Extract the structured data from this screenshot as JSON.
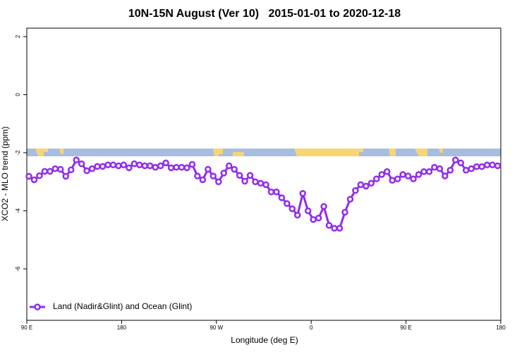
{
  "chart_data": {
    "type": "line",
    "title": "10N-15N August (Ver 10)   2015-01-01 to 2020-12-18",
    "xlabel": "Longitude (deg E)",
    "ylabel": "XCO2 - MLO trend (ppm)",
    "x": [
      92,
      97,
      102,
      107,
      112,
      117,
      122,
      127,
      132,
      137,
      142,
      147,
      152,
      157,
      162,
      167,
      172,
      177,
      182,
      187,
      192,
      197,
      202,
      207,
      212,
      217,
      222,
      227,
      232,
      237,
      242,
      247,
      252,
      257,
      262,
      267,
      272,
      277,
      282,
      287,
      292,
      297,
      302,
      307,
      312,
      317,
      322,
      327,
      332,
      337,
      342,
      347,
      352,
      357,
      362,
      367,
      372,
      377,
      382,
      387,
      392,
      397,
      402,
      407,
      412,
      417,
      422,
      427,
      432,
      437,
      442,
      447,
      452,
      457,
      462,
      467,
      472,
      477,
      482,
      487,
      492,
      497,
      502,
      507,
      512,
      517,
      522,
      527,
      532,
      537
    ],
    "series": [
      {
        "name": "Land (Nadir&Glint) and Ocean (Glint)",
        "color": "#912cee",
        "values": [
          -2.81,
          -2.93,
          -2.79,
          -2.64,
          -2.64,
          -2.55,
          -2.57,
          -2.81,
          -2.59,
          -2.25,
          -2.38,
          -2.62,
          -2.55,
          -2.47,
          -2.47,
          -2.42,
          -2.42,
          -2.45,
          -2.42,
          -2.52,
          -2.38,
          -2.42,
          -2.45,
          -2.45,
          -2.5,
          -2.45,
          -2.35,
          -2.52,
          -2.5,
          -2.5,
          -2.52,
          -2.4,
          -2.8,
          -2.93,
          -2.57,
          -2.8,
          -3.0,
          -2.7,
          -2.45,
          -2.57,
          -2.78,
          -2.98,
          -2.78,
          -3.0,
          -3.05,
          -3.1,
          -3.35,
          -3.35,
          -3.55,
          -3.75,
          -3.93,
          -4.15,
          -3.4,
          -4.0,
          -4.3,
          -4.25,
          -3.85,
          -4.5,
          -4.6,
          -4.6,
          -4.05,
          -3.6,
          -3.3,
          -3.1,
          -3.15,
          -3.05,
          -2.9,
          -2.75,
          -2.65,
          -2.95,
          -2.9,
          -2.75,
          -2.8,
          -2.9,
          -2.75,
          -2.65,
          -2.65,
          -2.5,
          -2.55,
          -2.8,
          -2.6,
          -2.25,
          -2.35,
          -2.6,
          -2.55,
          -2.48,
          -2.48,
          -2.42,
          -2.42,
          -2.45
        ]
      }
    ],
    "xlim": [
      90,
      540
    ],
    "xticks": [
      {
        "value": 90,
        "label": "90 E"
      },
      180,
      {
        "value": 270,
        "label": "90 W"
      },
      {
        "value": 360,
        "label": "0"
      },
      {
        "value": 450,
        "label": "90 E"
      },
      {
        "value": 540,
        "label": "180"
      }
    ],
    "ylim": [
      -7.77,
      2.29
    ],
    "yticks": [
      2,
      0,
      -2,
      -4,
      -6
    ],
    "legend": "bottom-left"
  }
}
